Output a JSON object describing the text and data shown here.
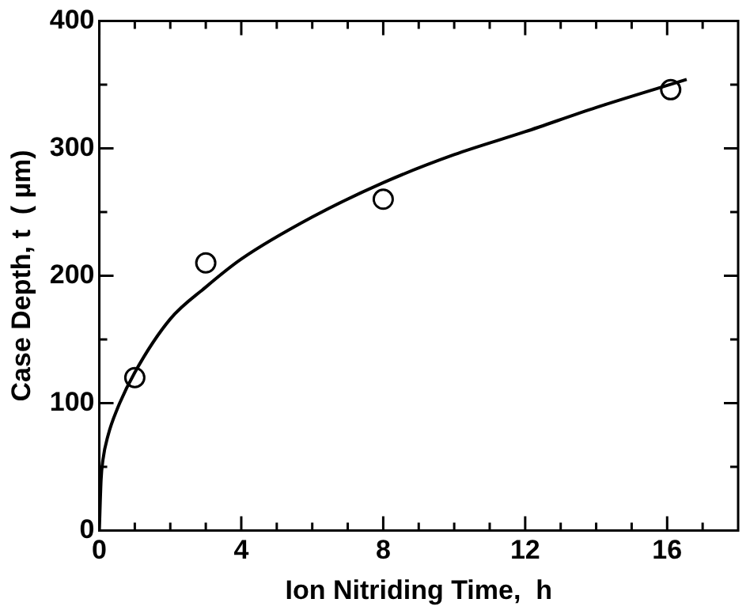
{
  "chart_data": {
    "type": "scatter",
    "xlabel": "Ion Nitriding Time,  h",
    "ylabel": "Case Depth, t  ( µm)",
    "xlim": [
      0,
      18
    ],
    "ylim": [
      0,
      400
    ],
    "xticks": [
      0,
      {
        "value": 1,
        "label": null
      },
      {
        "value": 2,
        "label": null
      },
      {
        "value": 3,
        "label": null
      },
      4,
      {
        "value": 5,
        "label": null
      },
      {
        "value": 6,
        "label": null
      },
      {
        "value": 7,
        "label": null
      },
      8,
      {
        "value": 9,
        "label": null
      },
      {
        "value": 10,
        "label": null
      },
      {
        "value": 11,
        "label": null
      },
      12,
      {
        "value": 13,
        "label": null
      },
      {
        "value": 14,
        "label": null
      },
      {
        "value": 15,
        "label": null
      },
      16,
      {
        "value": 17,
        "label": null
      }
    ],
    "yticks": [
      0,
      {
        "value": 50,
        "label": null
      },
      100,
      {
        "value": 150,
        "label": null
      },
      200,
      {
        "value": 250,
        "label": null
      },
      300,
      {
        "value": 350,
        "label": null
      },
      400
    ],
    "grid": false,
    "legend": false,
    "marker": "circle",
    "series": [
      {
        "color": "#000000",
        "x": [
          1,
          3,
          8,
          16.1
        ],
        "values": [
          120,
          210,
          260,
          346
        ]
      },
      {
        "type": "line",
        "color": "#000000",
        "marker": "none",
        "line_style": "solid",
        "x": [
          0,
          0.05,
          0.1,
          0.25,
          0.5,
          1,
          2,
          3,
          4,
          6,
          8,
          10,
          12,
          14,
          16.55
        ],
        "values": [
          0,
          40,
          55,
          75,
          95,
          124,
          166,
          191,
          213,
          246,
          273,
          295,
          313,
          332,
          354
        ]
      }
    ]
  }
}
